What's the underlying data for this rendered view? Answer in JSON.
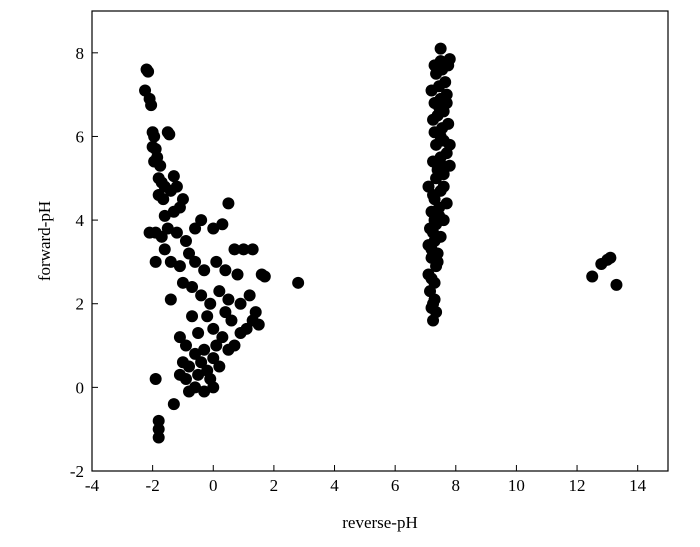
{
  "chart_data": {
    "type": "scatter",
    "x_label": "reverse-pH",
    "y_label": "forward-pH",
    "color": "#000000",
    "xlim": [
      -4,
      15
    ],
    "ylim": [
      -2,
      9
    ],
    "xticks": [
      -4,
      -2,
      0,
      2,
      4,
      6,
      8,
      10,
      12,
      14
    ],
    "yticks": [
      -2,
      0,
      2,
      4,
      6,
      8
    ],
    "x": [
      -2.2,
      -2.15,
      -2.25,
      -2.1,
      -2.05,
      -2.0,
      -1.95,
      -2.0,
      -1.9,
      -1.85,
      -1.95,
      -1.75,
      -1.8,
      -1.7,
      -1.6,
      -1.8,
      -1.65,
      -1.5,
      -1.45,
      -1.3,
      -1.2,
      -1.4,
      -1.0,
      -1.6,
      -1.3,
      -1.1,
      -2.1,
      -1.9,
      -1.7,
      -1.5,
      -1.2,
      -0.9,
      -0.6,
      -0.4,
      0.0,
      0.3,
      0.5,
      0.7,
      1.0,
      1.3,
      1.6,
      1.7,
      -1.9,
      -1.6,
      -1.4,
      -1.1,
      -0.8,
      -0.6,
      -0.3,
      0.1,
      0.4,
      0.8,
      -1.4,
      -1.0,
      -0.7,
      -0.4,
      -0.1,
      0.2,
      0.5,
      0.9,
      1.2,
      -1.1,
      -0.9,
      -1.0,
      -1.1,
      -0.9,
      -0.8,
      -0.6,
      -0.5,
      -0.4,
      -0.3,
      -0.2,
      -0.1,
      0.0,
      0.1,
      0.2,
      0.3,
      0.5,
      0.7,
      0.9,
      1.1,
      1.3,
      1.4,
      1.5,
      0.6,
      0.0,
      -0.5,
      -0.7,
      -0.2,
      0.4,
      -0.3,
      0.0,
      -0.8,
      -0.6,
      2.8,
      -1.8,
      -1.8,
      -1.8,
      -1.9,
      -1.3,
      7.25,
      7.2,
      7.3,
      7.15,
      7.3,
      7.1,
      7.35,
      7.2,
      7.4,
      7.1,
      7.3,
      7.5,
      7.15,
      7.35,
      7.6,
      7.2,
      7.45,
      7.7,
      7.25,
      7.5,
      7.1,
      7.35,
      7.6,
      7.8,
      7.25,
      7.5,
      7.7,
      7.35,
      7.6,
      7.3,
      7.55,
      7.75,
      7.4,
      7.6,
      7.3,
      7.5,
      7.7,
      7.2,
      7.45,
      7.65,
      7.35,
      7.55,
      7.75,
      7.5,
      7.8,
      7.5,
      7.3,
      7.25,
      7.35,
      7.2,
      7.4,
      7.25,
      7.45,
      7.3,
      7.4,
      7.5,
      7.45,
      7.25,
      7.55,
      7.2,
      7.3,
      7.6,
      7.8,
      7.7,
      12.5,
      12.8,
      13.0,
      13.1,
      13.3
    ],
    "y": [
      7.6,
      7.55,
      7.1,
      6.9,
      6.75,
      6.1,
      6.0,
      5.75,
      5.7,
      5.5,
      5.4,
      5.3,
      5.0,
      4.9,
      4.8,
      4.6,
      4.5,
      6.1,
      6.05,
      5.05,
      4.8,
      4.7,
      4.5,
      4.1,
      4.2,
      4.3,
      3.7,
      3.7,
      3.6,
      3.8,
      3.7,
      3.5,
      3.8,
      4.0,
      3.8,
      3.9,
      4.4,
      3.3,
      3.3,
      3.3,
      2.7,
      2.65,
      3.0,
      3.3,
      3.0,
      2.9,
      3.2,
      3.0,
      2.8,
      3.0,
      2.8,
      2.7,
      2.1,
      2.5,
      2.4,
      2.2,
      2.0,
      2.3,
      2.1,
      2.0,
      2.2,
      1.2,
      1.0,
      0.6,
      0.3,
      0.2,
      -0.1,
      0.0,
      0.3,
      0.6,
      0.9,
      0.4,
      0.2,
      0.7,
      1.0,
      0.5,
      1.2,
      0.9,
      1.0,
      1.3,
      1.4,
      1.6,
      1.8,
      1.5,
      1.6,
      1.4,
      1.3,
      1.7,
      1.7,
      1.8,
      -0.1,
      0.0,
      0.5,
      0.8,
      2.5,
      -0.8,
      -1.0,
      -1.2,
      0.2,
      -0.4,
      1.6,
      1.9,
      2.1,
      2.3,
      2.5,
      2.7,
      2.9,
      3.1,
      3.2,
      3.4,
      3.5,
      3.6,
      3.8,
      3.9,
      4.0,
      4.2,
      4.3,
      4.4,
      4.6,
      4.7,
      4.8,
      5.0,
      5.1,
      5.3,
      5.4,
      5.5,
      5.6,
      5.8,
      5.9,
      6.1,
      6.2,
      6.3,
      6.5,
      6.6,
      6.8,
      6.9,
      7.0,
      7.1,
      7.2,
      7.3,
      7.5,
      7.6,
      7.7,
      7.8,
      7.85,
      8.1,
      7.7,
      2.0,
      1.8,
      2.6,
      3.0,
      3.7,
      4.1,
      4.5,
      5.2,
      6.0,
      6.7,
      6.4,
      5.3,
      3.3,
      4.0,
      4.8,
      5.8,
      6.8,
      2.65,
      2.95,
      3.05,
      3.1,
      2.45
    ]
  }
}
